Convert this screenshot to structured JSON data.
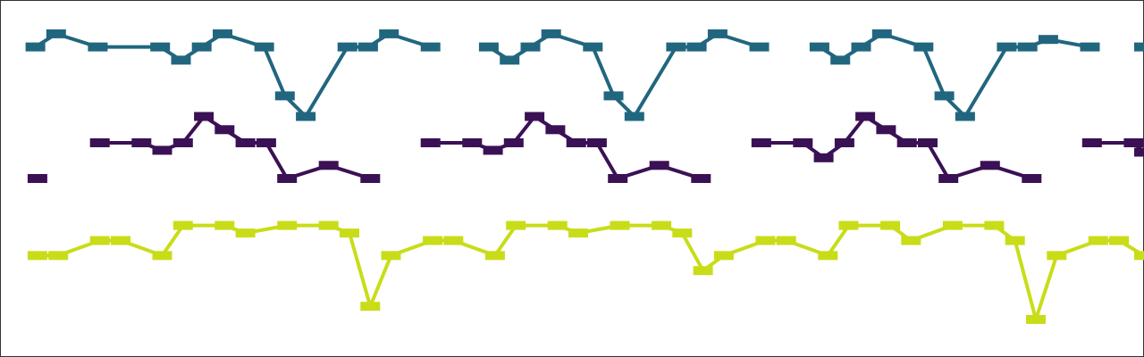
{
  "chart_data": {
    "type": "line",
    "title": "",
    "xlabel": "",
    "ylabel": "",
    "xlim": [
      0,
      55
    ],
    "ylim": [
      0,
      19
    ],
    "grid": false,
    "legend": false,
    "series": [
      {
        "color": "#21667f",
        "points": [
          [
            1.7,
            16.5
          ],
          [
            2.7,
            17.2
          ],
          [
            4.7,
            16.5
          ],
          [
            7.7,
            16.5
          ],
          [
            8.7,
            15.8
          ],
          [
            9.7,
            16.5
          ],
          [
            10.7,
            17.2
          ],
          [
            12.7,
            16.5
          ],
          [
            13.7,
            13.9
          ],
          [
            14.7,
            12.8
          ],
          [
            16.7,
            16.5
          ],
          [
            17.7,
            16.5
          ],
          [
            18.7,
            17.2
          ],
          [
            20.7,
            16.5
          ],
          null,
          [
            23.5,
            16.5
          ],
          [
            24.5,
            15.8
          ],
          [
            25.5,
            16.5
          ],
          [
            26.5,
            17.2
          ],
          [
            28.5,
            16.5
          ],
          [
            29.5,
            13.9
          ],
          [
            30.5,
            12.8
          ],
          [
            32.5,
            16.5
          ],
          [
            33.5,
            16.5
          ],
          [
            34.5,
            17.2
          ],
          [
            36.5,
            16.5
          ],
          null,
          [
            39.4,
            16.5
          ],
          [
            40.4,
            15.8
          ],
          [
            41.4,
            16.5
          ],
          [
            42.4,
            17.2
          ],
          [
            44.4,
            16.5
          ],
          [
            45.4,
            13.9
          ],
          [
            46.4,
            12.8
          ],
          [
            48.4,
            16.5
          ],
          [
            49.4,
            16.5
          ],
          [
            50.4,
            16.9
          ],
          [
            52.4,
            16.5
          ],
          null,
          [
            55.0,
            16.5
          ]
        ]
      },
      {
        "color": "#3b1155",
        "points": [
          [
            1.8,
            9.5
          ],
          null,
          [
            4.8,
            11.4
          ],
          [
            6.8,
            11.4
          ],
          [
            7.8,
            11.0
          ],
          [
            8.8,
            11.4
          ],
          [
            9.8,
            12.8
          ],
          [
            10.8,
            12.1
          ],
          [
            11.8,
            11.4
          ],
          [
            12.8,
            11.4
          ],
          [
            13.8,
            9.5
          ],
          [
            15.8,
            10.2
          ],
          [
            17.8,
            9.5
          ],
          null,
          [
            20.7,
            11.4
          ],
          [
            22.7,
            11.4
          ],
          [
            23.7,
            11.0
          ],
          [
            24.7,
            11.4
          ],
          [
            25.7,
            12.8
          ],
          [
            26.7,
            12.1
          ],
          [
            27.7,
            11.4
          ],
          [
            28.7,
            11.4
          ],
          [
            29.7,
            9.5
          ],
          [
            31.7,
            10.2
          ],
          [
            33.7,
            9.5
          ],
          null,
          [
            36.6,
            11.4
          ],
          [
            38.6,
            11.4
          ],
          [
            39.6,
            10.6
          ],
          [
            40.6,
            11.4
          ],
          [
            41.6,
            12.8
          ],
          [
            42.6,
            12.1
          ],
          [
            43.6,
            11.4
          ],
          [
            44.6,
            11.4
          ],
          [
            45.6,
            9.5
          ],
          [
            47.6,
            10.2
          ],
          [
            49.6,
            9.5
          ],
          null,
          [
            52.5,
            11.4
          ],
          [
            54.5,
            11.4
          ],
          [
            55.0,
            10.9
          ]
        ]
      },
      {
        "color": "#c8dd18",
        "points": [
          [
            1.8,
            5.4
          ],
          [
            2.8,
            5.4
          ],
          [
            4.8,
            6.2
          ],
          [
            5.8,
            6.2
          ],
          [
            7.8,
            5.4
          ],
          [
            8.8,
            7.0
          ],
          [
            10.8,
            7.0
          ],
          [
            11.8,
            6.6
          ],
          [
            13.8,
            7.0
          ],
          [
            15.8,
            7.0
          ],
          [
            16.8,
            6.6
          ],
          [
            17.8,
            2.7
          ],
          [
            18.8,
            5.4
          ],
          [
            20.8,
            6.2
          ],
          [
            21.8,
            6.2
          ],
          [
            23.8,
            5.4
          ],
          [
            24.8,
            7.0
          ],
          [
            26.8,
            7.0
          ],
          [
            27.8,
            6.6
          ],
          [
            29.8,
            7.0
          ],
          [
            31.8,
            7.0
          ],
          [
            32.8,
            6.6
          ],
          [
            33.8,
            4.6
          ],
          [
            34.8,
            5.4
          ],
          [
            36.8,
            6.2
          ],
          [
            37.8,
            6.2
          ],
          [
            39.8,
            5.4
          ],
          [
            40.8,
            7.0
          ],
          [
            42.8,
            7.0
          ],
          [
            43.8,
            6.2
          ],
          [
            45.8,
            7.0
          ],
          [
            47.8,
            7.0
          ],
          [
            48.8,
            6.2
          ],
          [
            49.8,
            2.0
          ],
          [
            50.8,
            5.4
          ],
          [
            52.8,
            6.2
          ],
          [
            53.8,
            6.2
          ],
          [
            55.0,
            5.4
          ]
        ]
      }
    ]
  }
}
